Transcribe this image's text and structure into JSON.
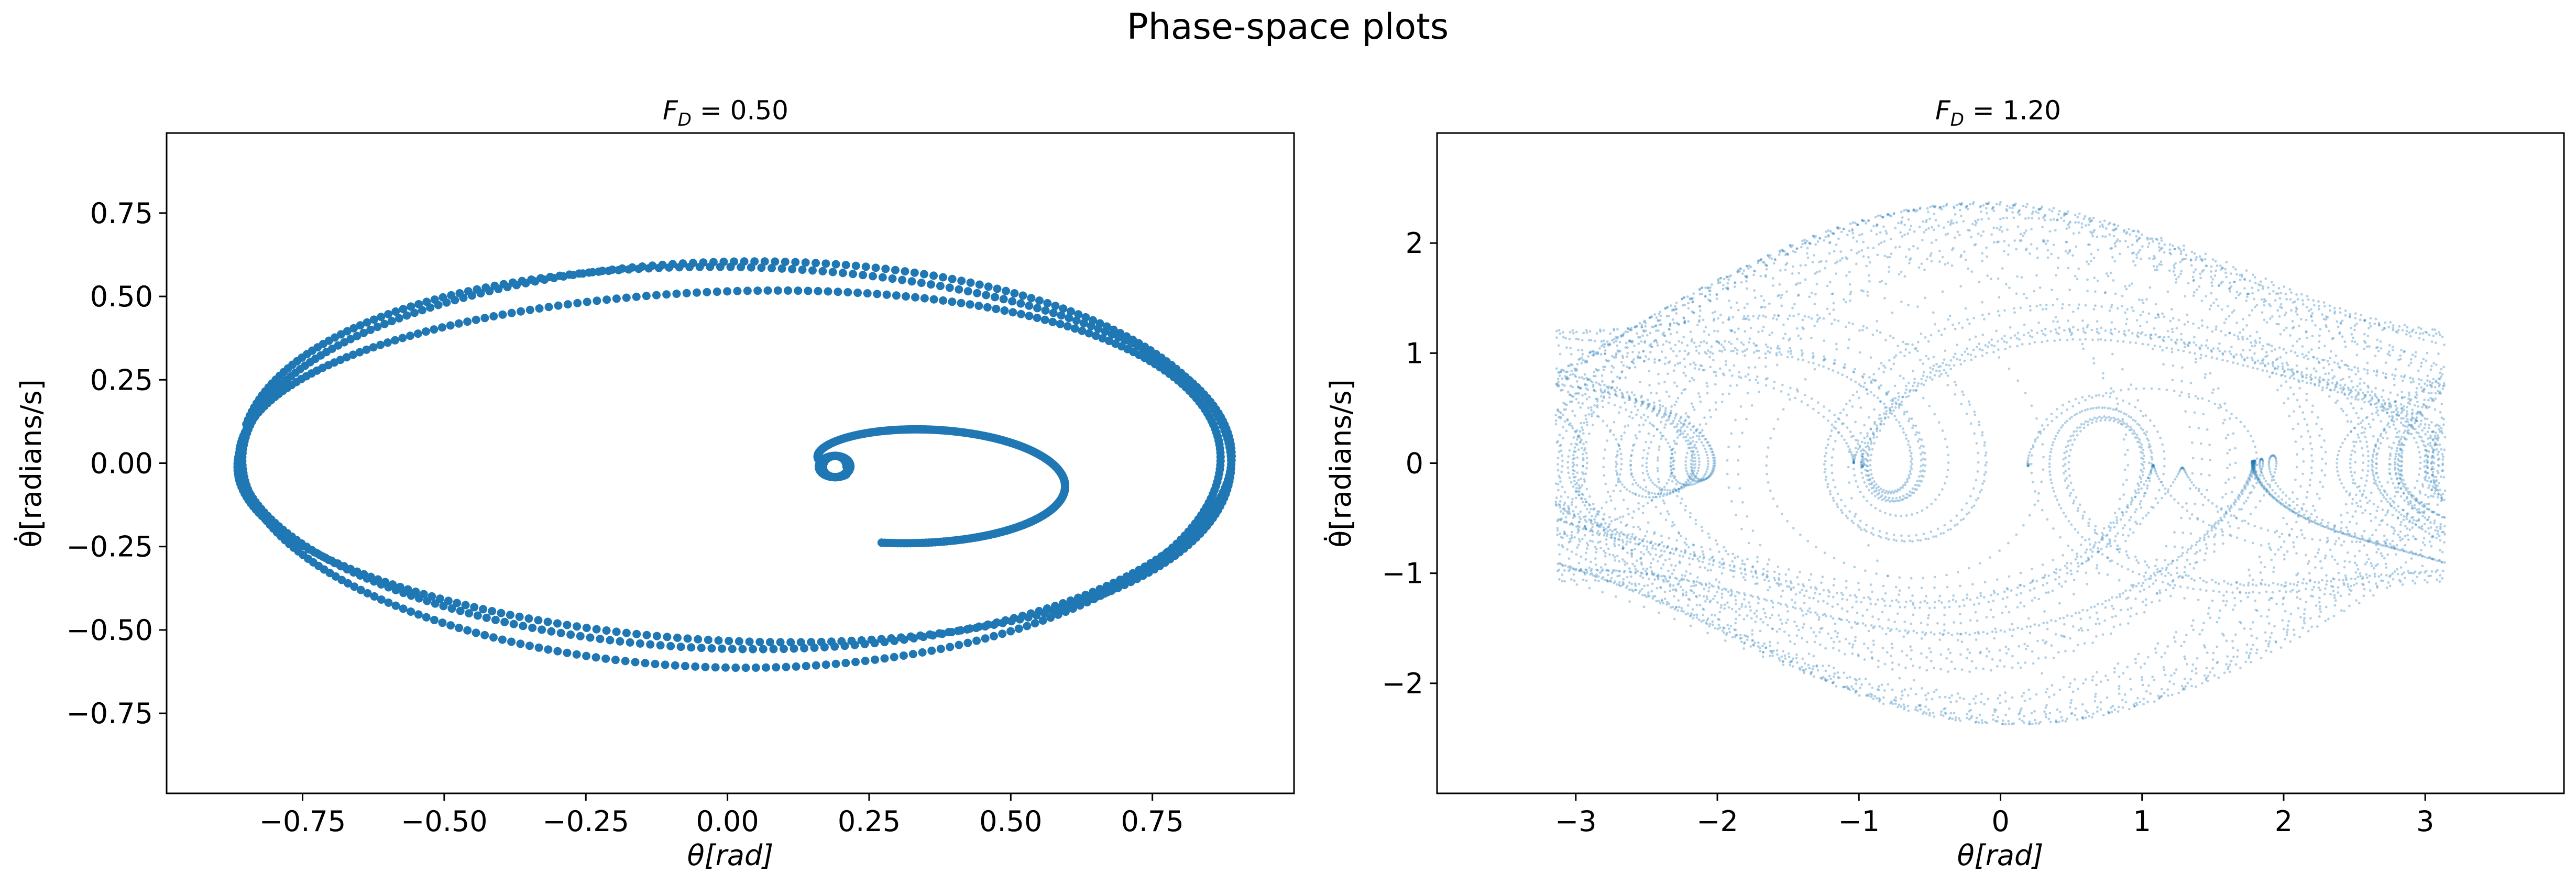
{
  "figure": {
    "title": "Phase-space plots"
  },
  "chart_data": [
    {
      "type": "scatter",
      "title": "F_D = 0.50",
      "title_parts": {
        "base": "F",
        "sub": "D",
        "rest": " = 0.50"
      },
      "xlabel": "θ[rad]",
      "ylabel": "θ̇[radians/s]",
      "xlim": [
        -0.99,
        1.0
      ],
      "ylim": [
        -0.99,
        0.99
      ],
      "xticks": [
        -0.75,
        -0.5,
        -0.25,
        0.0,
        0.25,
        0.5,
        0.75
      ],
      "xtick_labels": [
        "−0.75",
        "−0.50",
        "−0.25",
        "0.00",
        "0.25",
        "0.50",
        "0.75"
      ],
      "yticks": [
        -0.75,
        -0.5,
        -0.25,
        0.0,
        0.25,
        0.5,
        0.75
      ],
      "ytick_labels": [
        "−0.75",
        "−0.50",
        "−0.25",
        "0.00",
        "0.25",
        "0.50",
        "0.75"
      ],
      "grid": false,
      "color": "#1f77b4",
      "series": [
        {
          "description_points": "spiral from (0.19, -0.02) outward to an ellipse, then closed orbit",
          "x": [
            0.18,
            0.19,
            0.2,
            0.2,
            0.19,
            0.18,
            0.17,
            0.18,
            0.2,
            0.23,
            0.27,
            0.31,
            0.36,
            0.41,
            0.46,
            0.5,
            0.54,
            0.57,
            0.58,
            0.57,
            0.54,
            0.49,
            0.42,
            0.34,
            0.24,
            0.13,
            0.02,
            -0.09,
            -0.2,
            -0.31,
            -0.41,
            -0.5,
            -0.58,
            -0.66,
            -0.72,
            -0.78,
            -0.82,
            -0.85,
            -0.86,
            -0.85,
            -0.82,
            -0.77,
            -0.7,
            -0.61,
            -0.5,
            -0.37,
            -0.23,
            -0.08,
            0.07,
            0.22,
            0.37,
            0.5,
            0.62,
            0.72,
            0.8,
            0.85,
            0.87,
            0.87,
            0.84,
            0.79,
            0.71,
            0.61,
            0.5,
            0.37,
            0.23,
            0.08,
            -0.07,
            -0.22,
            -0.36,
            -0.49,
            -0.61,
            -0.71,
            -0.79,
            -0.84,
            -0.87,
            -0.86,
            -0.83,
            -0.78,
            -0.7,
            -0.6,
            -0.48,
            -0.35,
            -0.21,
            -0.06,
            0.09,
            0.24,
            0.38,
            0.51,
            0.63,
            0.73,
            0.8,
            0.85,
            0.88,
            0.87,
            0.84,
            0.78,
            0.7,
            0.6,
            0.48,
            0.34,
            0.2,
            0.05,
            -0.1,
            -0.25,
            -0.39,
            -0.52,
            -0.63,
            -0.73,
            -0.8,
            -0.85,
            -0.87
          ],
          "y": [
            -0.02,
            -0.04,
            -0.01,
            0.02,
            0.04,
            0.05,
            0.03,
            0.01,
            0.06,
            0.11,
            0.16,
            0.2,
            0.22,
            0.23,
            0.22,
            0.2,
            0.16,
            0.1,
            0.03,
            -0.04,
            -0.11,
            -0.18,
            -0.24,
            -0.3,
            -0.35,
            -0.39,
            -0.42,
            -0.45,
            -0.47,
            -0.48,
            -0.48,
            -0.47,
            -0.45,
            -0.41,
            -0.35,
            -0.28,
            -0.19,
            -0.09,
            0.01,
            0.11,
            0.21,
            0.3,
            0.39,
            0.46,
            0.52,
            0.57,
            0.6,
            0.62,
            0.62,
            0.6,
            0.56,
            0.5,
            0.42,
            0.33,
            0.22,
            0.11,
            0.0,
            -0.11,
            -0.22,
            -0.32,
            -0.41,
            -0.48,
            -0.54,
            -0.58,
            -0.6,
            -0.61,
            -0.6,
            -0.58,
            -0.53,
            -0.47,
            -0.39,
            -0.3,
            -0.2,
            -0.1,
            0.01,
            0.12,
            0.22,
            0.32,
            0.4,
            0.47,
            0.53,
            0.57,
            0.6,
            0.61,
            0.61,
            0.59,
            0.55,
            0.49,
            0.42,
            0.33,
            0.23,
            0.12,
            0.01,
            -0.1,
            -0.21,
            -0.31,
            -0.4,
            -0.48,
            -0.54,
            -0.59,
            -0.62,
            -0.62,
            -0.61,
            -0.58,
            -0.53,
            -0.46,
            -0.38,
            -0.29,
            -0.19,
            -0.08,
            0.0
          ]
        }
      ]
    },
    {
      "type": "scatter",
      "title": "F_D = 1.20",
      "title_parts": {
        "base": "F",
        "sub": "D",
        "rest": " = 1.20"
      },
      "xlabel": "θ[rad]",
      "ylabel": "θ̇[radians/s]",
      "xlim": [
        -3.98,
        3.98
      ],
      "ylim": [
        -3.0,
        3.0
      ],
      "xticks": [
        -3,
        -2,
        -1,
        0,
        1,
        2,
        3
      ],
      "xtick_labels": [
        "−3",
        "−2",
        "−1",
        "0",
        "1",
        "2",
        "3"
      ],
      "yticks": [
        -2,
        -1,
        0,
        1,
        2
      ],
      "ytick_labels": [
        "−2",
        "−1",
        "0",
        "1",
        "2"
      ],
      "grid": false,
      "color": "#1f77b4",
      "theta_range": [
        -3.14159,
        3.14159
      ],
      "series": [
        {
          "description_points": "chaotic trajectory wrapped to [-pi, pi], omega within about [-2.35, 2.35]"
        }
      ]
    }
  ]
}
